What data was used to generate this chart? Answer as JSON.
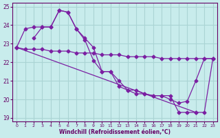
{
  "xlabel": "Windchill (Refroidissement éolien,°C)",
  "bg_color": "#c8ecec",
  "grid_color": "#aad4d4",
  "line_color": "#7b1fa2",
  "xlim": [
    -0.5,
    23.5
  ],
  "ylim": [
    18.8,
    25.2
  ],
  "xticks": [
    0,
    1,
    2,
    3,
    4,
    5,
    6,
    7,
    8,
    9,
    10,
    11,
    12,
    13,
    14,
    15,
    16,
    17,
    18,
    19,
    20,
    21,
    22,
    23
  ],
  "yticks": [
    19,
    20,
    21,
    22,
    23,
    24,
    25
  ],
  "series1_x": [
    0,
    1,
    2,
    3,
    4,
    5,
    6,
    7,
    8,
    9,
    10,
    11,
    12,
    13,
    14,
    15,
    16,
    17,
    18,
    19,
    20,
    21,
    22,
    23
  ],
  "series1_y": [
    22.8,
    22.7,
    22.7,
    22.7,
    22.6,
    22.6,
    22.6,
    22.5,
    22.5,
    22.5,
    22.4,
    22.4,
    22.4,
    22.3,
    22.3,
    22.3,
    22.3,
    22.2,
    22.2,
    22.2,
    22.2,
    22.2,
    22.2,
    22.2
  ],
  "series2_x": [
    2,
    3,
    4,
    5,
    6,
    7,
    8,
    9,
    10,
    11,
    12,
    13,
    14,
    15,
    16,
    17,
    18,
    19,
    20,
    21,
    22,
    23
  ],
  "series2_y": [
    23.3,
    23.9,
    23.9,
    24.8,
    24.7,
    23.8,
    23.3,
    22.8,
    21.5,
    21.5,
    21.0,
    20.5,
    20.3,
    20.3,
    20.2,
    20.2,
    20.0,
    19.8,
    19.9,
    21.0,
    22.2,
    22.2
  ],
  "series3_x": [
    0,
    1,
    2,
    3,
    4,
    5,
    6,
    7,
    8,
    9,
    10,
    11,
    12,
    13,
    14,
    15,
    16,
    17,
    18,
    19,
    20,
    21
  ],
  "series3_y": [
    22.8,
    23.8,
    23.9,
    23.9,
    23.9,
    24.8,
    24.7,
    23.8,
    23.2,
    22.1,
    21.5,
    21.5,
    20.7,
    20.5,
    20.5,
    20.3,
    20.2,
    20.2,
    20.2,
    19.3,
    19.3,
    19.3
  ],
  "series4_x": [
    0,
    21,
    22,
    23
  ],
  "series4_y": [
    22.8,
    19.3,
    19.3,
    22.2
  ]
}
